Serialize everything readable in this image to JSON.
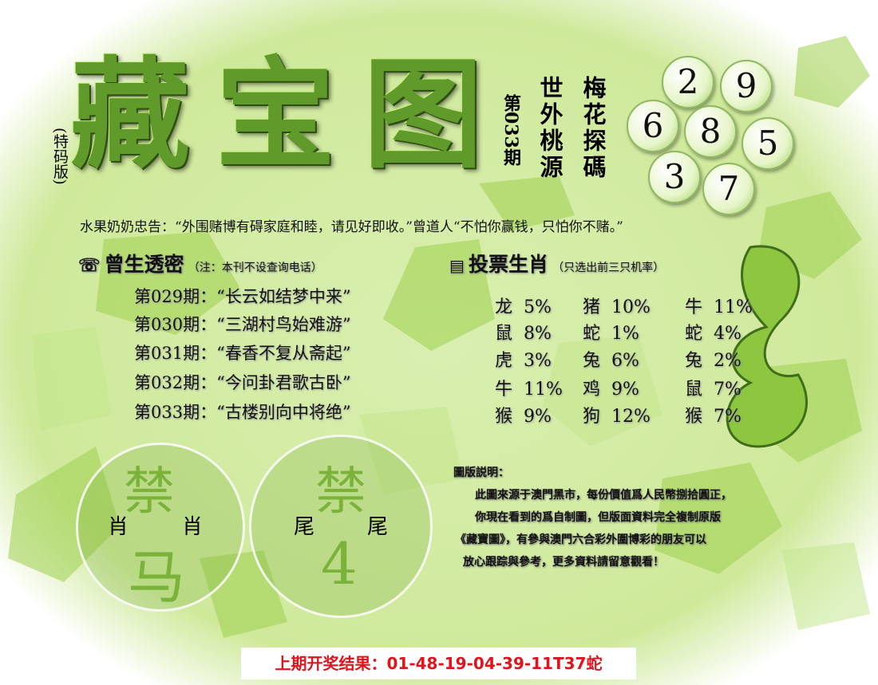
{
  "title": {
    "chars": [
      "藏",
      "宝",
      "图"
    ],
    "edition": "(特码版)",
    "issue": "第033期"
  },
  "poem": {
    "col1": "世外桃源",
    "col2": "梅花探碼"
  },
  "balls": [
    "2",
    "9",
    "6",
    "8",
    "5",
    "3",
    "7"
  ],
  "quote": "水果奶奶忠告：“外围赌博有碍家庭和睦，请见好即收。”曾道人“不怕你赢钱，只怕你不赌。”",
  "riddles": {
    "title": "曾生透密",
    "note": "（注：本刊不设查询电话）",
    "items": [
      "第029期：“长云如结梦中来”",
      "第030期：“三湖村鸟始难游”",
      "第031期：“春香不复从斋起”",
      "第032期：“今问卦君歌古卧”",
      "第033期：“古楼别向中将绝”"
    ]
  },
  "votes": {
    "title": "投票生肖",
    "note": "（只选出前三只机率）",
    "rows": [
      [
        "龙  5%",
        "猪  10%",
        "牛  11%"
      ],
      [
        "鼠  8%",
        "蛇  1%",
        "蛇  4%"
      ],
      [
        "虎  3%",
        "兔  6%",
        "兔  2%"
      ],
      [
        "牛  11%",
        "鸡  9%",
        "鼠  7%"
      ],
      [
        "猴  9%",
        "狗  12%",
        "猴  7%"
      ]
    ]
  },
  "ban1": {
    "top": "禁",
    "left": "肖",
    "right": "肖",
    "value": "马"
  },
  "ban2": {
    "top": "禁",
    "left": "尾",
    "right": "尾",
    "value": "4"
  },
  "explain": {
    "title": "圖版説明：",
    "lines": [
      "此圖來源于澳門黑市，每份價值爲人民幣捌拾圓正，",
      "你現在看到的爲自制圖，但版面資料完全複制原版",
      "《藏寶圖》，有參與澳門六合彩外圍博彩的朋友可以",
      "放心跟踪與參考，更多資料請留意觀看！"
    ]
  },
  "result": "上期开奖结果：01-48-19-04-39-11T37蛇",
  "colors": {
    "accent": "#5f9a2a",
    "result": "#e0141c"
  }
}
